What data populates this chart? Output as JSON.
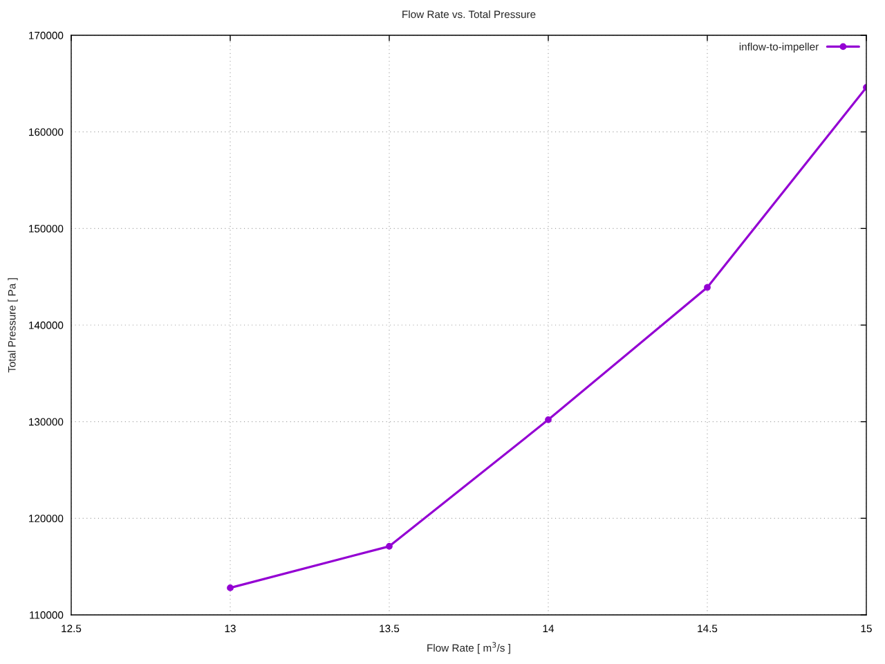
{
  "chart_data": {
    "type": "line",
    "title": "Flow Rate vs. Total Pressure",
    "xlabel": "Flow Rate [ m$^{3}$/s ]",
    "ylabel": "Total Pressure [ Pa ]",
    "x": [
      13,
      13.5,
      14,
      14.5,
      15
    ],
    "series": [
      {
        "name": "inflow-to-impeller",
        "color": "#9400d3",
        "values": [
          112800,
          117100,
          130200,
          143900,
          164600
        ]
      }
    ],
    "xlim": [
      12.5,
      15
    ],
    "xticks": [
      12.5,
      13,
      13.5,
      14,
      14.5,
      15
    ],
    "ylim": [
      110000,
      170000
    ],
    "yticks": [
      110000,
      120000,
      130000,
      140000,
      150000,
      160000,
      170000
    ],
    "grid": true,
    "legend": "top right",
    "marker": "circle",
    "line_style": "solid"
  }
}
